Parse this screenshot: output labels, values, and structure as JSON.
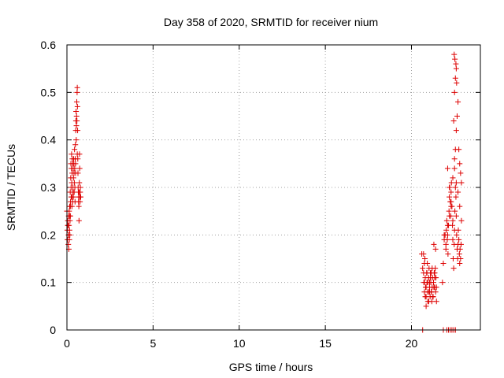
{
  "chart_data": {
    "type": "scatter",
    "title": "Day 358 of 2020, SRMTID for receiver nium",
    "xlabel": "GPS time / hours",
    "ylabel": "SRMTID / TECUs",
    "xlim": [
      0,
      24
    ],
    "ylim": [
      0,
      0.6
    ],
    "xticks": [
      "0",
      "5",
      "10",
      "15",
      "20"
    ],
    "yticks": [
      "0",
      "0.1",
      "0.2",
      "0.3",
      "0.4",
      "0.5",
      "0.6"
    ],
    "grid": true,
    "legend": "none",
    "marker": "plus",
    "color": "#dd0000",
    "x": [
      0.0,
      0.02,
      0.03,
      0.05,
      0.06,
      0.08,
      0.09,
      0.1,
      0.11,
      0.12,
      0.13,
      0.14,
      0.15,
      0.16,
      0.17,
      0.18,
      0.19,
      0.2,
      0.21,
      0.22,
      0.23,
      0.24,
      0.25,
      0.26,
      0.27,
      0.28,
      0.29,
      0.3,
      0.31,
      0.32,
      0.33,
      0.34,
      0.35,
      0.36,
      0.37,
      0.38,
      0.39,
      0.4,
      0.41,
      0.42,
      0.43,
      0.44,
      0.45,
      0.46,
      0.47,
      0.48,
      0.49,
      0.5,
      0.51,
      0.52,
      0.53,
      0.54,
      0.55,
      0.56,
      0.57,
      0.58,
      0.59,
      0.6,
      0.61,
      0.62,
      0.63,
      0.64,
      0.65,
      0.66,
      0.67,
      0.68,
      0.69,
      0.7,
      0.71,
      0.72,
      0.73,
      0.74,
      0.75,
      0.76,
      0.77,
      0.78,
      0.8,
      0.05,
      0.1,
      0.15,
      0.2,
      0.3,
      0.4,
      0.5,
      0.6,
      0.7,
      20.6,
      20.65,
      20.7,
      20.72,
      20.75,
      20.78,
      20.8,
      20.82,
      20.85,
      20.88,
      20.9,
      20.92,
      20.95,
      20.98,
      21.0,
      21.02,
      21.05,
      21.08,
      21.1,
      21.12,
      21.15,
      21.18,
      21.2,
      21.22,
      21.25,
      21.28,
      21.3,
      21.32,
      21.35,
      21.38,
      21.4,
      21.42,
      20.7,
      20.75,
      20.8,
      20.85,
      20.9,
      20.95,
      21.0,
      21.05,
      21.1,
      21.15,
      21.2,
      21.25,
      21.3,
      21.35,
      21.4,
      21.45,
      20.75,
      20.85,
      20.95,
      21.05,
      21.15,
      21.25,
      21.35,
      21.45,
      21.8,
      21.85,
      21.9,
      21.95,
      22.0,
      22.02,
      22.05,
      22.08,
      22.1,
      22.12,
      22.15,
      22.18,
      22.2,
      22.22,
      22.25,
      22.28,
      22.3,
      22.32,
      22.35,
      22.38,
      22.4,
      22.42,
      22.45,
      22.48,
      22.5,
      22.52,
      22.55,
      22.58,
      22.6,
      22.62,
      22.65,
      22.68,
      22.7,
      22.72,
      22.75,
      22.78,
      22.8,
      22.82,
      22.85,
      22.88,
      21.9,
      22.0,
      22.1,
      22.2,
      22.3,
      22.4,
      22.5,
      22.6,
      22.7,
      22.8,
      22.9,
      22.1,
      22.2,
      22.3,
      22.4,
      22.5,
      22.55,
      22.6,
      22.65,
      22.7,
      22.75,
      22.8,
      22.85,
      22.9,
      22.45,
      22.5,
      22.55,
      22.6,
      22.52,
      22.58,
      22.62,
      22.48,
      22.05,
      22.15,
      22.25,
      22.35,
      22.45,
      22.55,
      20.65,
      21.85
    ],
    "y": [
      0.25,
      0.21,
      0.19,
      0.23,
      0.22,
      0.18,
      0.2,
      0.24,
      0.17,
      0.22,
      0.25,
      0.19,
      0.21,
      0.26,
      0.2,
      0.23,
      0.29,
      0.24,
      0.27,
      0.32,
      0.35,
      0.3,
      0.28,
      0.34,
      0.37,
      0.31,
      0.26,
      0.33,
      0.36,
      0.29,
      0.27,
      0.35,
      0.3,
      0.34,
      0.28,
      0.32,
      0.36,
      0.35,
      0.33,
      0.29,
      0.31,
      0.38,
      0.34,
      0.3,
      0.27,
      0.36,
      0.39,
      0.35,
      0.42,
      0.44,
      0.46,
      0.4,
      0.43,
      0.45,
      0.48,
      0.44,
      0.5,
      0.51,
      0.47,
      0.42,
      0.36,
      0.33,
      0.3,
      0.29,
      0.27,
      0.28,
      0.26,
      0.23,
      0.29,
      0.31,
      0.37,
      0.34,
      0.28,
      0.27,
      0.29,
      0.3,
      0.28,
      0.22,
      0.2,
      0.24,
      0.26,
      0.28,
      0.29,
      0.33,
      0.37,
      0.29,
      0.16,
      0.13,
      0.12,
      0.1,
      0.08,
      0.15,
      0.11,
      0.09,
      0.07,
      0.12,
      0.1,
      0.14,
      0.06,
      0.08,
      0.11,
      0.13,
      0.09,
      0.07,
      0.12,
      0.1,
      0.08,
      0.06,
      0.09,
      0.11,
      0.07,
      0.1,
      0.18,
      0.12,
      0.09,
      0.13,
      0.17,
      0.11,
      0.16,
      0.1,
      0.07,
      0.09,
      0.12,
      0.08,
      0.06,
      0.1,
      0.11,
      0.08,
      0.13,
      0.07,
      0.09,
      0.12,
      0.08,
      0.06,
      0.14,
      0.05,
      0.1,
      0.08,
      0.12,
      0.07,
      0.11,
      0.09,
      0.1,
      0.14,
      0.19,
      0.2,
      0.17,
      0.21,
      0.23,
      0.19,
      0.2,
      0.16,
      0.22,
      0.25,
      0.28,
      0.3,
      0.27,
      0.24,
      0.29,
      0.31,
      0.26,
      0.22,
      0.19,
      0.15,
      0.13,
      0.18,
      0.21,
      0.25,
      0.3,
      0.28,
      0.24,
      0.2,
      0.17,
      0.15,
      0.18,
      0.21,
      0.19,
      0.16,
      0.14,
      0.17,
      0.15,
      0.18,
      0.2,
      0.18,
      0.22,
      0.24,
      0.27,
      0.23,
      0.34,
      0.31,
      0.29,
      0.26,
      0.23,
      0.34,
      0.3,
      0.26,
      0.32,
      0.36,
      0.38,
      0.42,
      0.45,
      0.48,
      0.38,
      0.35,
      0.33,
      0.31,
      0.44,
      0.5,
      0.53,
      0.55,
      0.57,
      0.56,
      0.52,
      0.58,
      0.0,
      0.0,
      0.0,
      0.0,
      0.0,
      0.0,
      0.0,
      0.0
    ]
  }
}
